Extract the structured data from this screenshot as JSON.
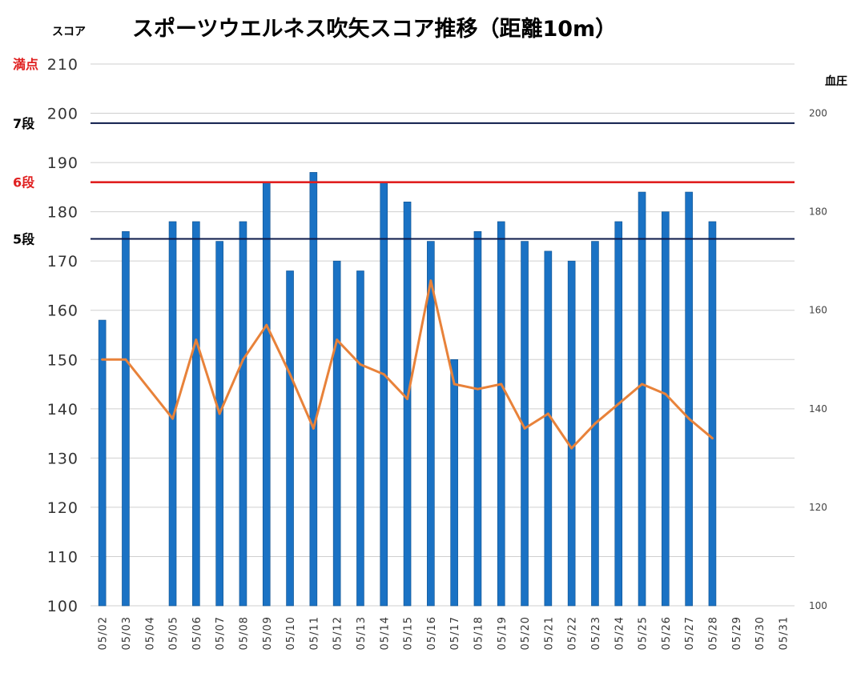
{
  "chart_data": {
    "type": "bar",
    "title": "スポーツウエルネス吹矢スコア推移（距離10m）",
    "ylabel": "スコア",
    "y2label": "血圧",
    "ylim": [
      100,
      210
    ],
    "y2lim": [
      100,
      210
    ],
    "yticks": [
      100,
      110,
      120,
      130,
      140,
      150,
      160,
      170,
      180,
      190,
      200,
      210
    ],
    "y2ticks": [
      100,
      120,
      140,
      160,
      180,
      200
    ],
    "grid": true,
    "categories": [
      "05/02",
      "05/03",
      "05/04",
      "05/05",
      "05/06",
      "05/07",
      "05/08",
      "05/09",
      "05/10",
      "05/11",
      "05/12",
      "05/13",
      "05/14",
      "05/15",
      "05/16",
      "05/17",
      "05/18",
      "05/19",
      "05/20",
      "05/21",
      "05/22",
      "05/23",
      "05/24",
      "05/25",
      "05/26",
      "05/27",
      "05/28",
      "05/29",
      "05/30",
      "05/31"
    ],
    "series": [
      {
        "name": "",
        "type": "bar",
        "axis": "left",
        "color": "#1a72c4",
        "values": [
          158,
          176,
          null,
          178,
          178,
          174,
          178,
          186,
          168,
          188,
          170,
          168,
          186,
          182,
          174,
          150,
          176,
          178,
          174,
          172,
          170,
          174,
          178,
          184,
          180,
          184,
          178,
          null,
          null,
          null
        ]
      },
      {
        "name": "",
        "type": "line",
        "axis": "right",
        "color": "#e8823a",
        "values": [
          150,
          150,
          null,
          138,
          154,
          139,
          150,
          157,
          147,
          136,
          154,
          149,
          147,
          142,
          166,
          145,
          144,
          145,
          136,
          139,
          132,
          137,
          141,
          145,
          143,
          138,
          134,
          null,
          null,
          null
        ]
      }
    ],
    "reference_lines": [
      {
        "label": "満点",
        "value": 210,
        "color": "#e02020",
        "line": false
      },
      {
        "label": "7段",
        "value": 198,
        "color": "#0c1a4a",
        "label_color": "#000000",
        "line": true
      },
      {
        "label": "6段",
        "value": 186,
        "color": "#e02020",
        "label_color": "#e02020",
        "line": true
      },
      {
        "label": "5段",
        "value": 174.5,
        "color": "#0c1a4a",
        "label_color": "#000000",
        "line": true
      }
    ]
  }
}
